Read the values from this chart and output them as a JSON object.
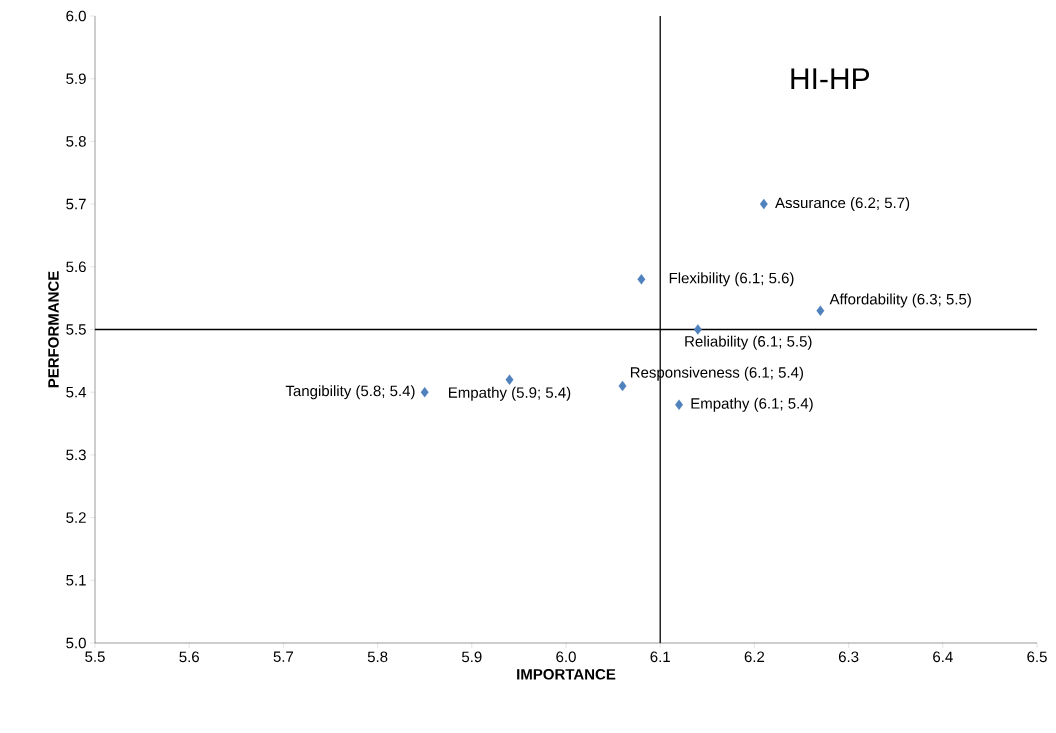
{
  "chart_data": {
    "type": "scatter",
    "xlabel": "IMPORTANCE",
    "ylabel": "PERFORMANCE",
    "annotations": [
      "HI-HP"
    ],
    "x": [
      6.21,
      6.08,
      6.27,
      6.14,
      6.06,
      6.12,
      5.94,
      5.85
    ],
    "values": [
      5.7,
      5.58,
      5.53,
      5.5,
      5.41,
      5.38,
      5.42,
      5.4
    ],
    "value_labels": [
      "Assurance (6.2; 5.7)",
      "Flexibility (6.1; 5.6)",
      "Affordability (6.3; 5.5)",
      "Reliability (6.1; 5.5)",
      "Responsiveness (6.1; 5.4)",
      "Empathy (6.1; 5.4)",
      "Empathy (5.9; 5.4)",
      "Tangibility (5.8; 5.4)"
    ],
    "color": "#4f81bd",
    "marker": "diamond",
    "grid": false,
    "xlim": [
      5.5,
      6.5
    ],
    "ylim": [
      5.0,
      6.0
    ],
    "xticks": [
      5.5,
      5.6,
      5.7,
      5.8,
      5.9,
      {
        "value": 6,
        "label": "6.0"
      },
      6.1,
      6.2,
      6.3,
      6.4,
      6.5
    ],
    "yticks": [
      {
        "value": 5,
        "label": "5.0"
      },
      5.1,
      5.2,
      5.3,
      5.4,
      5.5,
      5.6,
      5.7,
      5.8,
      5.9,
      {
        "value": 6,
        "label": "6.0"
      }
    ],
    "ref_lines": [
      {
        "axis": "x",
        "value": 6.1,
        "color": "#000000"
      },
      {
        "axis": "y",
        "value": 5.5,
        "color": "#000000"
      }
    ]
  }
}
